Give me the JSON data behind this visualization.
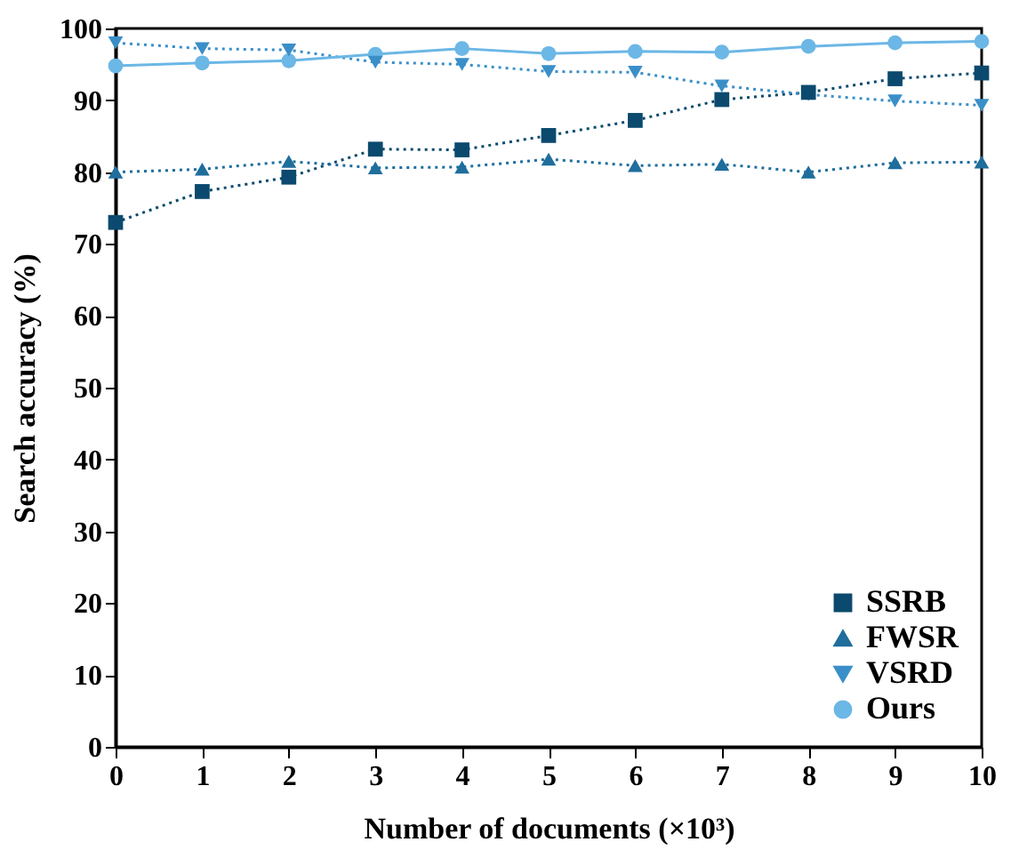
{
  "chart_data": {
    "type": "line",
    "xlabel": "Number of documents  (×10³)",
    "ylabel": "Search accuracy (%)",
    "x": [
      0,
      1,
      2,
      3,
      4,
      5,
      6,
      7,
      8,
      9,
      10
    ],
    "xlim": [
      0,
      10
    ],
    "xticks": [
      0,
      1,
      2,
      3,
      4,
      5,
      6,
      7,
      8,
      9,
      10
    ],
    "ylim": [
      0,
      100
    ],
    "yticks": [
      0,
      10,
      20,
      30,
      40,
      50,
      60,
      70,
      80,
      90,
      100
    ],
    "grid": false,
    "legend": "bottom right",
    "series": [
      {
        "name": "SSRB",
        "color": "#0b4a6e",
        "marker": "square",
        "line_style": "dotted",
        "values": [
          73,
          77.3,
          79.3,
          83.2,
          83.1,
          85.1,
          87.2,
          90.1,
          91.1,
          93,
          93.8
        ]
      },
      {
        "name": "FWSR",
        "color": "#1f6e9c",
        "marker": "triangle",
        "line_style": "dotted",
        "values": [
          80,
          80.4,
          81.5,
          80.6,
          80.7,
          81.8,
          80.9,
          81.1,
          80,
          81.3,
          81.4
        ]
      },
      {
        "name": "VSRD",
        "color": "#3a8fc8",
        "marker": "triangle-down",
        "line_style": "dotted",
        "values": [
          98,
          97.2,
          97,
          95.3,
          95,
          94,
          93.9,
          92,
          90.8,
          89.9,
          89.3
        ]
      },
      {
        "name": "Ours",
        "color": "#6bb7e6",
        "marker": "circle",
        "line_style": "solid",
        "values": [
          94.8,
          95.2,
          95.5,
          96.4,
          97.2,
          96.5,
          96.8,
          96.7,
          97.5,
          98,
          98.2
        ]
      }
    ]
  }
}
